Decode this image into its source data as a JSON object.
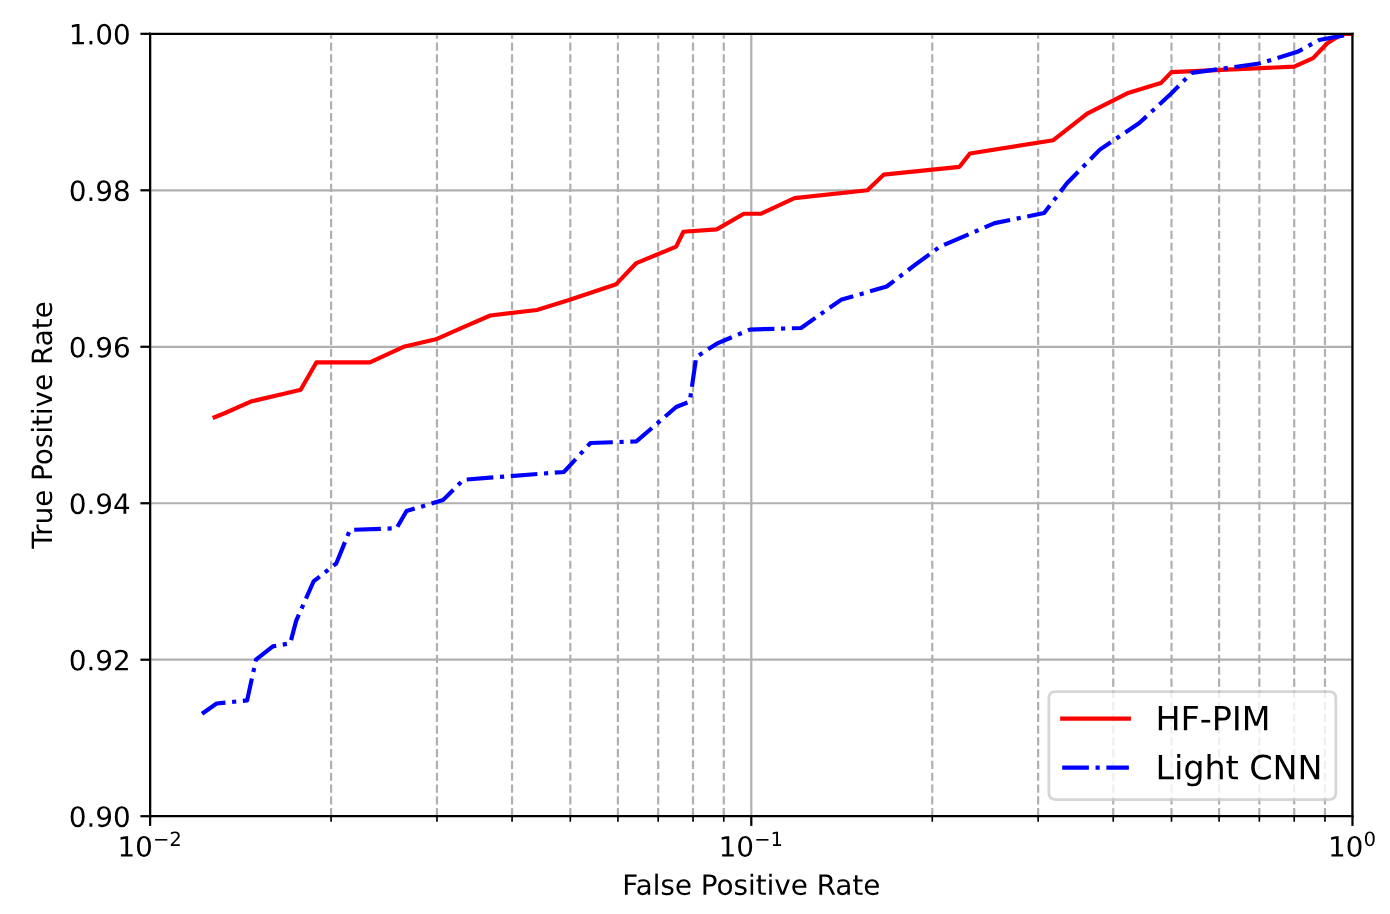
{
  "chart_data": {
    "type": "line",
    "xlabel": "False Positive Rate",
    "ylabel": "True Positive Rate",
    "log": "x",
    "xlim": [
      0.01,
      1
    ],
    "xticks": [
      {
        "value": 0.01,
        "label": "10$^{−2}$"
      },
      {
        "value": 0.1,
        "label": "10$^{−1}$"
      },
      {
        "value": 1,
        "label": "10$^{0}$"
      }
    ],
    "ylim": [
      0.9,
      1.0
    ],
    "yticks": [
      {
        "value": 0.9,
        "label": "0.90"
      },
      {
        "value": 0.92,
        "label": "0.92"
      },
      {
        "value": 0.94,
        "label": "0.94"
      },
      {
        "value": 0.96,
        "label": "0.96"
      },
      {
        "value": 0.98,
        "label": "0.98"
      },
      {
        "value": 1.0,
        "label": "1.00"
      }
    ],
    "grid": true,
    "legend": "bottom right",
    "series": [
      {
        "name": "HF-PIM",
        "color": "#ff0000",
        "line_style": "solid",
        "x": [
          0.0128,
          0.0133,
          0.0147,
          0.0167,
          0.0178,
          0.0189,
          0.0232,
          0.0264,
          0.03,
          0.0332,
          0.0368,
          0.044,
          0.0499,
          0.0596,
          0.0644,
          0.075,
          0.0771,
          0.0876,
          0.0972,
          0.1037,
          0.118,
          0.156,
          0.166,
          0.222,
          0.231,
          0.318,
          0.362,
          0.422,
          0.48,
          0.5,
          0.8,
          0.86,
          0.908,
          0.963,
          1.0
        ],
        "values": [
          0.951,
          0.9515,
          0.953,
          0.954,
          0.9545,
          0.958,
          0.958,
          0.96,
          0.961,
          0.9625,
          0.964,
          0.9647,
          0.966,
          0.968,
          0.9707,
          0.9728,
          0.9747,
          0.975,
          0.977,
          0.977,
          0.979,
          0.98,
          0.982,
          0.983,
          0.9847,
          0.9864,
          0.9898,
          0.9924,
          0.9937,
          0.9951,
          0.9958,
          0.9969,
          0.9988,
          1.0,
          1.0
        ]
      },
      {
        "name": "Light CNN",
        "color": "#0000ff",
        "line_style": "dashdot",
        "x": [
          0.0122,
          0.0129,
          0.0145,
          0.015,
          0.016,
          0.0171,
          0.0175,
          0.0187,
          0.0204,
          0.0215,
          0.0257,
          0.0267,
          0.0307,
          0.0332,
          0.0488,
          0.054,
          0.0644,
          0.075,
          0.079,
          0.081,
          0.0876,
          0.0995,
          0.121,
          0.141,
          0.168,
          0.186,
          0.206,
          0.254,
          0.307,
          0.335,
          0.38,
          0.442,
          0.5,
          0.54,
          0.7,
          0.81,
          0.88,
          1.0
        ],
        "values": [
          0.9131,
          0.9144,
          0.9148,
          0.92,
          0.9217,
          0.9221,
          0.925,
          0.93,
          0.9323,
          0.9366,
          0.9368,
          0.939,
          0.9404,
          0.943,
          0.944,
          0.9477,
          0.9479,
          0.9523,
          0.953,
          0.9587,
          0.9604,
          0.9622,
          0.9624,
          0.966,
          0.9677,
          0.9703,
          0.9728,
          0.9758,
          0.9771,
          0.9809,
          0.9852,
          0.9886,
          0.9924,
          0.995,
          0.9962,
          0.9977,
          0.9992,
          1.0
        ]
      }
    ]
  }
}
